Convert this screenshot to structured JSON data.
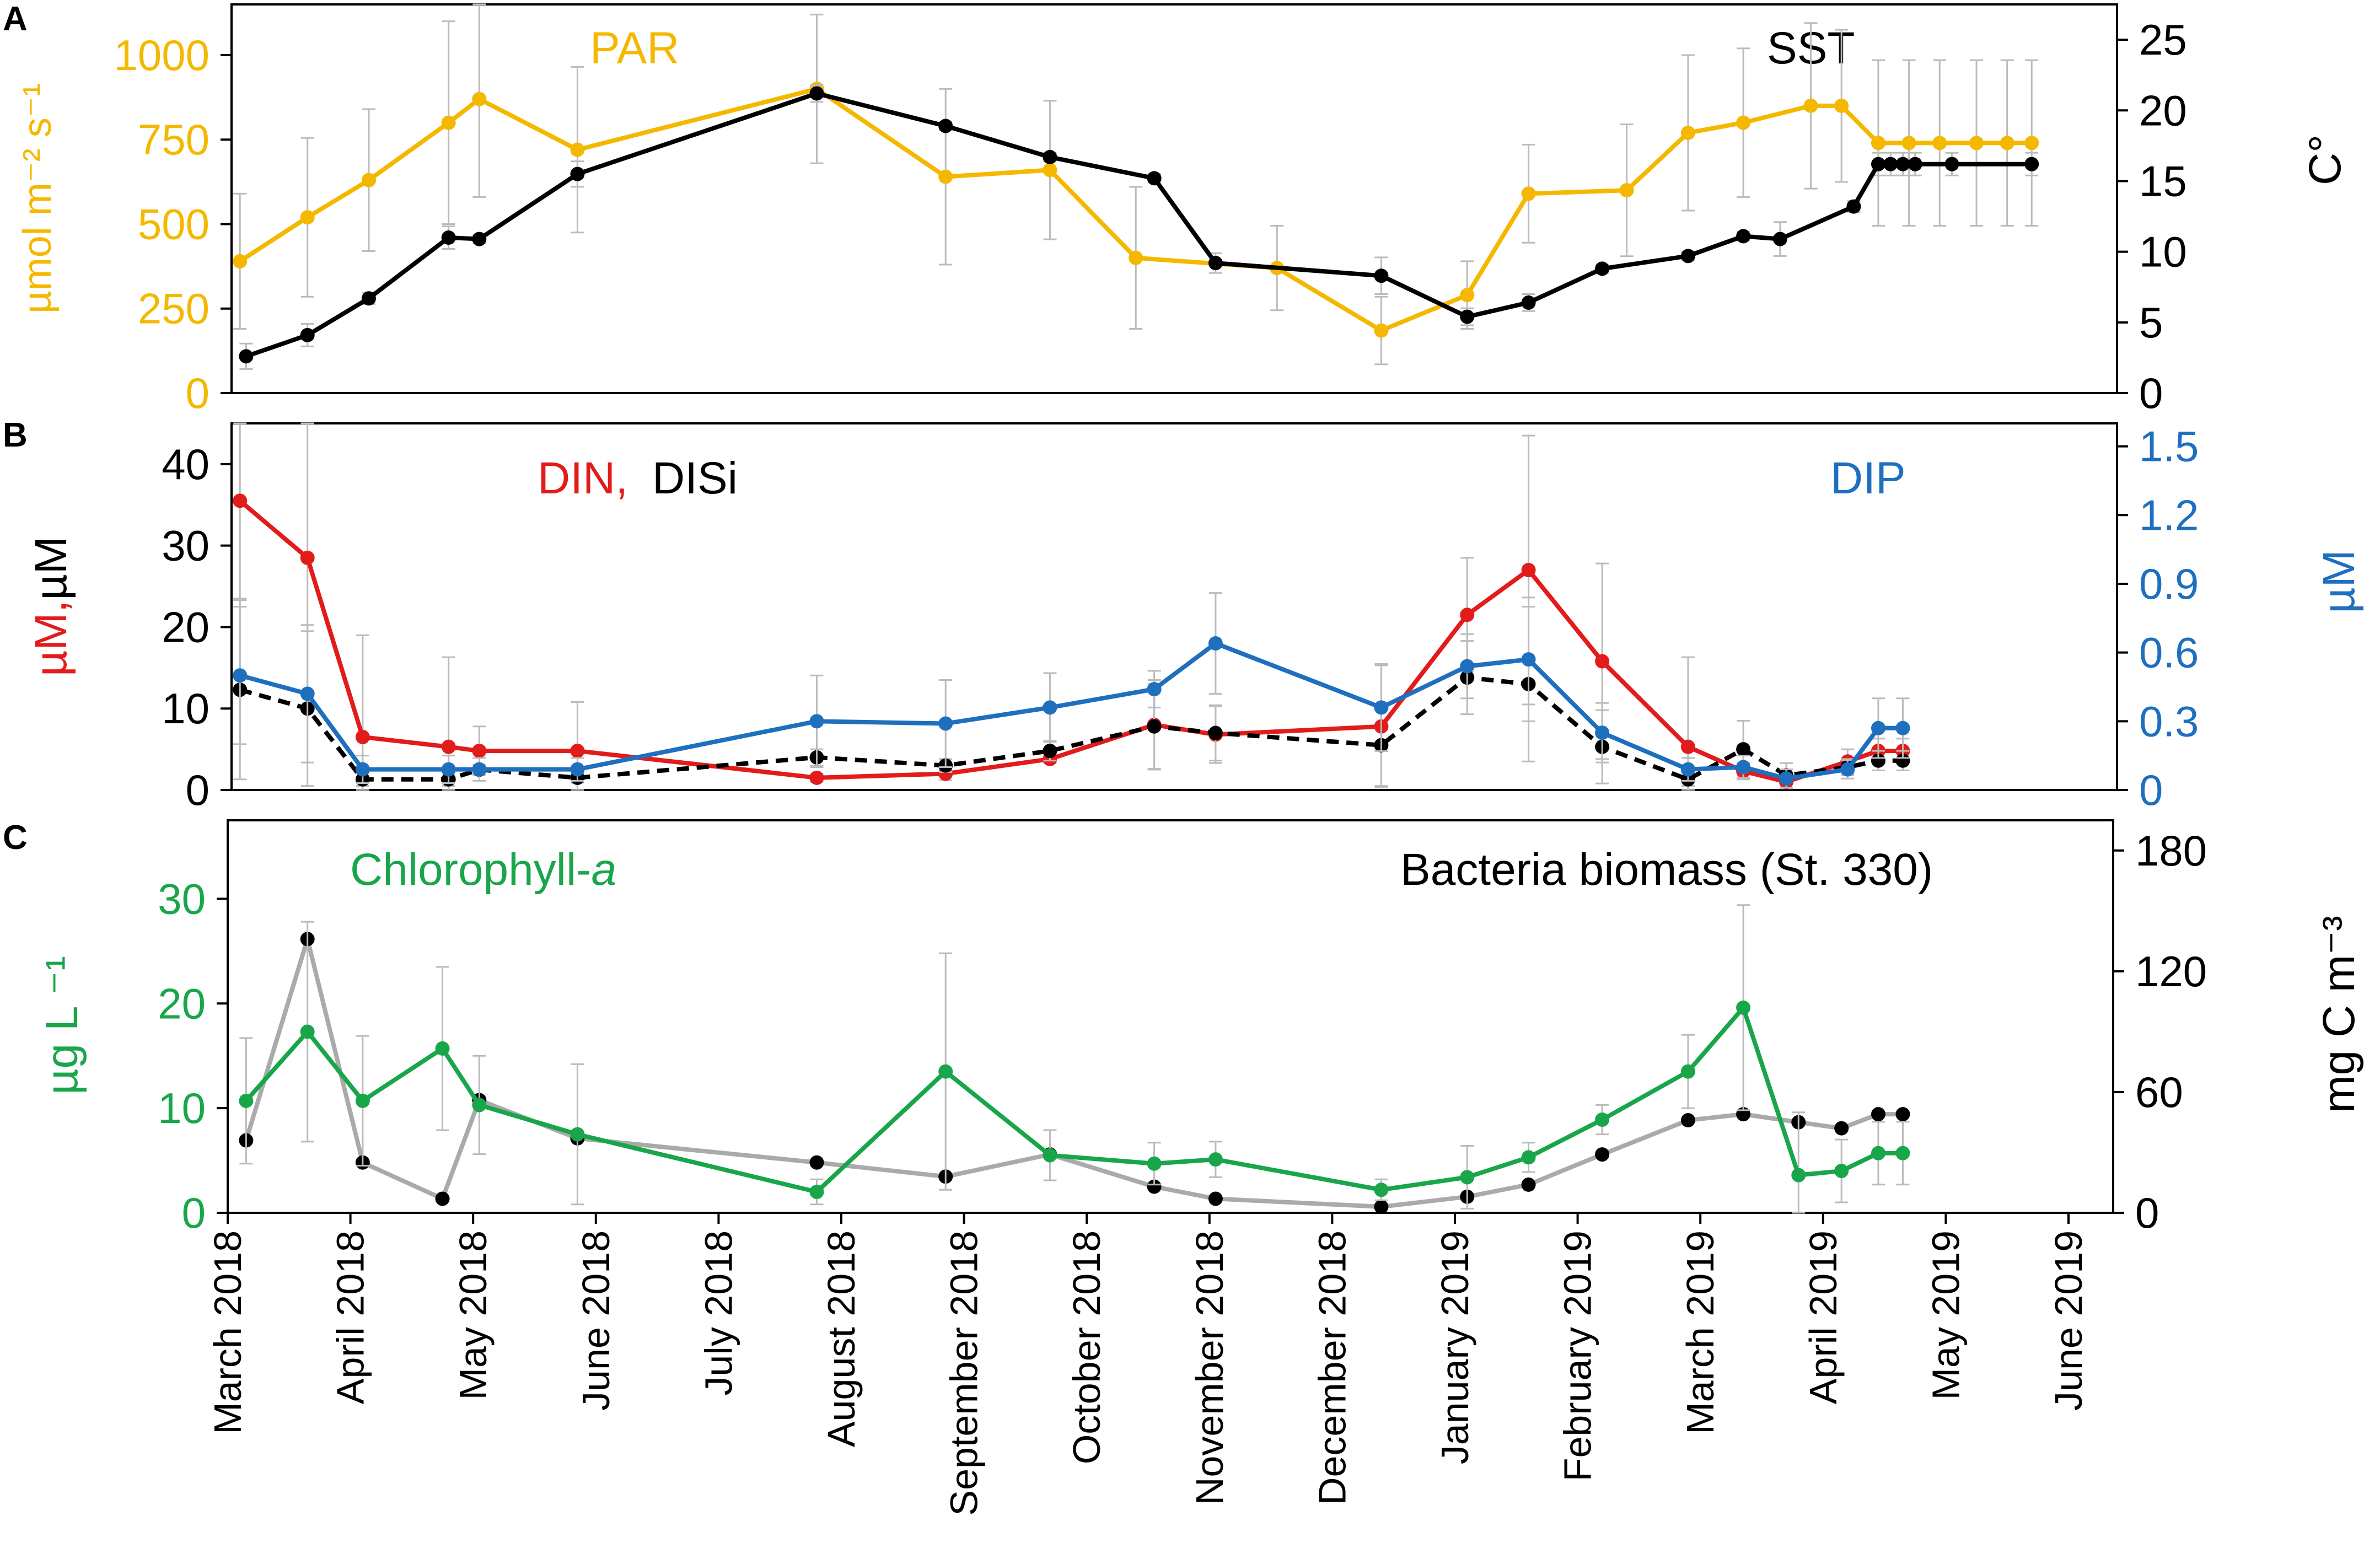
{
  "colors": {
    "par": "#f5b800",
    "sst": "#000000",
    "din": "#e21b1b",
    "disi": "#000000",
    "dip": "#1f6fbf",
    "chl": "#19a64a",
    "bact": "#aaaaaa",
    "error": "#bbbbbb",
    "axis": "#000000"
  },
  "chart_data": [
    {
      "panel": "A",
      "type": "line",
      "labels": {
        "par": "PAR",
        "sst": "SST"
      },
      "ylabel_left": "µmol m⁻² s⁻¹",
      "ylabel_right": "C°",
      "ylim_left": [
        0,
        1150
      ],
      "ylim_right": [
        0,
        27.5
      ],
      "yticks_left": [
        0,
        250,
        500,
        750,
        1000
      ],
      "yticks_right": [
        0,
        5,
        10,
        15,
        20,
        25
      ],
      "series": [
        {
          "name": "PAR",
          "axis": "left",
          "color_key": "par",
          "dashed": false,
          "x": [
            0.1,
            0.65,
            1.15,
            1.8,
            2.05,
            2.85,
            4.8,
            5.85,
            6.7,
            7.4,
            8.55,
            9.4,
            10.1,
            10.6,
            11.4,
            11.9,
            12.35,
            12.9,
            13.15,
            13.45,
            13.7,
            13.95,
            14.25,
            14.5,
            14.7
          ],
          "y": [
            390,
            520,
            630,
            800,
            870,
            720,
            900,
            640,
            660,
            400,
            370,
            185,
            290,
            590,
            600,
            770,
            800,
            850,
            850,
            740,
            740,
            740,
            740,
            740,
            740
          ],
          "err": [
            200,
            235,
            210,
            300,
            290,
            245,
            220,
            260,
            205,
            210,
            125,
            100,
            100,
            145,
            195,
            230,
            220,
            245,
            225,
            245,
            245,
            245,
            245,
            245,
            245
          ]
        },
        {
          "name": "SST",
          "axis": "right",
          "color_key": "sst",
          "dashed": false,
          "x": [
            0.15,
            0.65,
            1.15,
            1.8,
            2.05,
            2.85,
            4.8,
            5.85,
            6.7,
            7.55,
            8.05,
            9.4,
            10.1,
            10.6,
            11.2,
            11.9,
            12.35,
            12.65,
            13.25,
            13.45,
            13.55,
            13.65,
            13.75,
            14.05,
            14.7
          ],
          "y": [
            2.6,
            4.1,
            6.7,
            11.0,
            10.9,
            15.5,
            21.2,
            18.9,
            16.7,
            15.2,
            9.2,
            8.3,
            5.4,
            6.4,
            8.8,
            9.7,
            11.1,
            10.9,
            13.2,
            16.2,
            16.2,
            16.2,
            16.2,
            16.2,
            16.2
          ],
          "err": [
            0.9,
            0.8,
            0.4,
            0.8,
            0.3,
            0.9,
            0.6,
            0.3,
            0.3,
            0.3,
            0.7,
            1.3,
            0.6,
            0.6,
            0.3,
            0.3,
            0.3,
            1.2,
            0.4,
            0.8,
            0.8,
            0.8,
            0.8,
            0.8,
            0.8
          ]
        }
      ]
    },
    {
      "panel": "B",
      "type": "line",
      "labels": {
        "din": "DIN,",
        "disi": "DISi",
        "dip": "DIP"
      },
      "ylabel_left_colored": "µM,",
      "ylabel_left_black": "µM",
      "ylabel_right": "µM",
      "ylim_left": [
        0,
        45
      ],
      "ylim_right": [
        0,
        1.6
      ],
      "yticks_left": [
        0,
        10,
        20,
        30,
        40
      ],
      "yticks_right": [
        "0",
        "0.3",
        "0.6",
        "0.9",
        "1.2",
        "1.5"
      ],
      "series": [
        {
          "name": "DIN",
          "axis": "left",
          "color_key": "din",
          "dashed": false,
          "x": [
            0.1,
            0.65,
            1.1,
            1.8,
            2.05,
            2.85,
            4.8,
            5.85,
            6.7,
            7.55,
            8.05,
            9.4,
            10.1,
            10.6,
            11.2,
            11.9,
            12.35,
            12.7,
            13.2,
            13.45,
            13.65
          ],
          "y": [
            35.5,
            28.5,
            6.5,
            5.3,
            4.8,
            4.8,
            1.5,
            2.0,
            3.8,
            8.0,
            6.8,
            7.8,
            21.5,
            27.0,
            15.8,
            5.3,
            2.3,
            1.0,
            3.5,
            4.8,
            4.8
          ],
          "err": [
            12,
            16.5,
            12.5,
            11,
            3,
            6,
            0.5,
            0.8,
            0.5,
            5.5,
            3.5,
            7.5,
            7,
            16.5,
            12,
            11,
            1,
            0.8,
            1.5,
            1.5,
            1.5
          ]
        },
        {
          "name": "DISi",
          "axis": "left",
          "color_key": "disi",
          "dashed": true,
          "x": [
            0.1,
            0.65,
            1.1,
            1.8,
            2.05,
            2.85,
            4.8,
            5.85,
            6.7,
            7.55,
            8.05,
            9.4,
            10.1,
            10.6,
            11.2,
            11.9,
            12.35,
            12.7,
            13.2,
            13.45,
            13.65
          ],
          "y": [
            12.3,
            10.0,
            1.3,
            1.3,
            2.5,
            1.5,
            4.0,
            3.0,
            4.8,
            7.8,
            7.0,
            5.5,
            13.8,
            13.0,
            5.3,
            1.3,
            5.0,
            1.8,
            2.8,
            3.6,
            3.6
          ],
          "err": [
            11,
            9.5,
            0.8,
            0.8,
            0.6,
            0.6,
            1.0,
            0.8,
            1.2,
            5.2,
            3.4,
            5.0,
            4.5,
            9.5,
            4.5,
            0.8,
            3.5,
            1.5,
            1.0,
            1.2,
            1.2
          ]
        },
        {
          "name": "DIP",
          "axis": "right",
          "color_key": "dip",
          "dashed": false,
          "x": [
            0.1,
            0.65,
            1.1,
            1.8,
            2.05,
            2.85,
            4.8,
            5.85,
            6.7,
            7.55,
            8.05,
            9.4,
            10.1,
            10.6,
            11.2,
            11.9,
            12.35,
            12.7,
            13.2,
            13.45,
            13.65
          ],
          "y": [
            0.5,
            0.42,
            0.09,
            0.09,
            0.09,
            0.09,
            0.3,
            0.29,
            0.36,
            0.44,
            0.64,
            0.36,
            0.54,
            0.57,
            0.25,
            0.09,
            0.1,
            0.05,
            0.09,
            0.27,
            0.27
          ],
          "err": [
            0.3,
            0.3,
            0.06,
            0.06,
            0.05,
            0.05,
            0.2,
            0.19,
            0.15,
            0.08,
            0.22,
            0.19,
            0.14,
            0.27,
            0.13,
            0.05,
            0.05,
            0.04,
            0.04,
            0.13,
            0.13
          ]
        }
      ]
    },
    {
      "panel": "C",
      "type": "line",
      "labels": {
        "chl_text": "Chlorophyll-",
        "chl_italic": "a",
        "bact": "Bacteria biomass (St. 330)"
      },
      "ylabel_left": "µg L ⁻¹",
      "ylabel_right": "mg C m⁻³",
      "ylim_left": [
        0,
        37.5
      ],
      "ylim_right": [
        0,
        195
      ],
      "yticks_left": [
        0,
        10,
        20,
        30
      ],
      "yticks_right": [
        0,
        60,
        120,
        180
      ],
      "series": [
        {
          "name": "Bacteria biomass",
          "axis": "right",
          "color_key": "bact",
          "dashed": false,
          "x": [
            0.15,
            0.65,
            1.1,
            1.75,
            2.05,
            2.85,
            4.8,
            5.85,
            6.7,
            7.55,
            8.05,
            9.4,
            10.1,
            10.6,
            11.2,
            11.9,
            12.35,
            12.8,
            13.15,
            13.45,
            13.65
          ],
          "y": [
            36,
            136,
            25,
            7,
            56,
            37,
            25,
            18,
            29,
            13,
            7,
            3,
            8,
            14,
            29,
            46,
            49,
            45,
            42,
            49,
            49
          ],
          "err": [
            0,
            0,
            0,
            0,
            0,
            0,
            0,
            0,
            0,
            0,
            0,
            0,
            0,
            0,
            0,
            0,
            0,
            0,
            0,
            0,
            0
          ]
        },
        {
          "name": "Chlorophyll-a",
          "axis": "left",
          "color_key": "chl",
          "dashed": false,
          "x": [
            0.15,
            0.65,
            1.1,
            1.75,
            2.05,
            2.85,
            4.8,
            5.85,
            6.7,
            7.55,
            8.05,
            9.4,
            10.1,
            10.6,
            11.2,
            11.9,
            12.35,
            12.8,
            13.15,
            13.45,
            13.65
          ],
          "y": [
            10.7,
            17.3,
            10.7,
            15.7,
            10.3,
            7.5,
            2.0,
            13.5,
            5.5,
            4.7,
            5.1,
            2.2,
            3.4,
            5.3,
            8.9,
            13.5,
            19.6,
            3.6,
            4.0,
            5.7,
            5.7
          ],
          "err": [
            6.0,
            10.5,
            6.2,
            7.8,
            4.7,
            6.7,
            1.2,
            11.3,
            2.4,
            2.0,
            1.7,
            1.0,
            3.0,
            1.4,
            1.4,
            3.5,
            9.8,
            6.0,
            3.0,
            3.0,
            3.0
          ]
        }
      ]
    }
  ],
  "x_axis": {
    "months": [
      "March 2018",
      "April 2018",
      "May 2018",
      "June 2018",
      "July 2018",
      "August 2018",
      "September 2018",
      "October 2018",
      "November 2018",
      "December 2018",
      "January 2019",
      "February 2019",
      "March 2019",
      "April 2019",
      "May 2019",
      "June 2019"
    ]
  },
  "panel_letters": [
    "A",
    "B",
    "C"
  ]
}
